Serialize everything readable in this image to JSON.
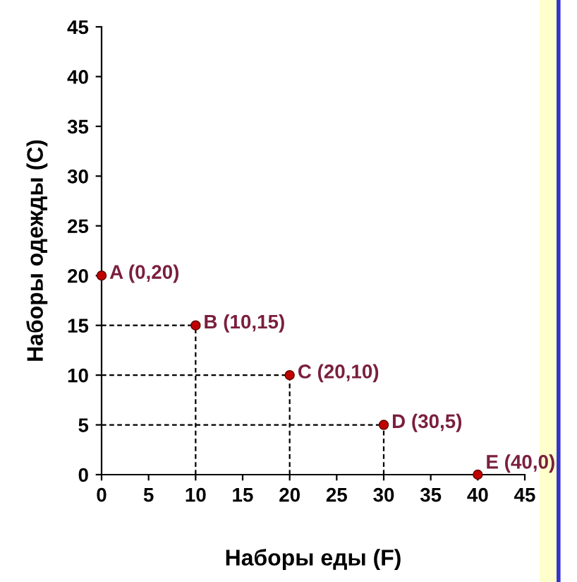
{
  "chart_data": {
    "type": "scatter",
    "xlabel": "Наборы еды (F)",
    "ylabel": "Наборы одежды (C)",
    "x": [
      0,
      10,
      20,
      30,
      40
    ],
    "values": [
      20,
      15,
      10,
      5,
      0
    ],
    "errors": [
      null,
      [
        15,
        0
      ],
      [
        10,
        0
      ],
      [
        5,
        0
      ],
      null
    ],
    "xerrors": [
      null,
      [
        10,
        0
      ],
      [
        20,
        0
      ],
      [
        30,
        0
      ],
      null
    ],
    "color": "#c00000",
    "marker": "circle",
    "xlim": [
      0,
      45
    ],
    "ylim": [
      0,
      45
    ],
    "xticks": [
      0,
      5,
      10,
      15,
      20,
      25,
      30,
      35,
      40,
      45
    ],
    "yticks": [
      0,
      5,
      10,
      15,
      20,
      25,
      30,
      35,
      40,
      45
    ],
    "grid": false,
    "legend": false,
    "annotations": [
      {
        "text": "A (0,20)",
        "x": 0,
        "y": 20
      },
      {
        "text": "B (10,15)",
        "x": 10,
        "y": 15
      },
      {
        "text": "C (20,10)",
        "x": 20,
        "y": 10
      },
      {
        "text": "D (30,5)",
        "x": 30,
        "y": 5
      },
      {
        "text": "E (40,0)",
        "x": 40,
        "y": 0
      }
    ]
  }
}
